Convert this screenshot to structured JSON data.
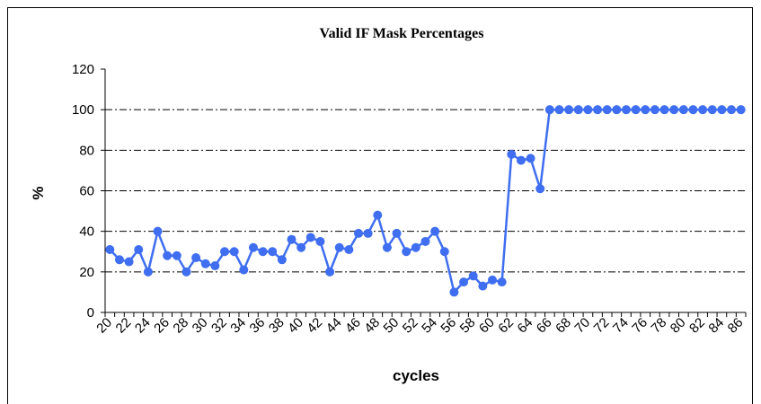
{
  "chart_data": {
    "type": "line",
    "title": "Valid IF Mask Percentages",
    "x_label": "cycles",
    "y_label": "%",
    "categories": [
      "20",
      null,
      "22",
      null,
      "24",
      null,
      "26",
      null,
      "28",
      null,
      "30",
      null,
      "32",
      null,
      "34",
      null,
      "36",
      null,
      "38",
      null,
      "40",
      null,
      "42",
      null,
      "44",
      null,
      "46",
      null,
      "48",
      null,
      "50",
      null,
      "52",
      null,
      "54",
      null,
      "56",
      null,
      "58",
      null,
      "60",
      null,
      "62",
      null,
      "64",
      null,
      "66",
      null,
      "68",
      null,
      "70",
      null,
      "72",
      null,
      "74",
      null,
      "76",
      null,
      "78",
      null,
      "80",
      null,
      "82",
      null,
      "84",
      null,
      "86"
    ],
    "series": [
      {
        "name": "Valid IF Mask",
        "color": "#3f6ef0",
        "values": [
          31,
          26,
          25,
          31,
          20,
          40,
          28,
          28,
          20,
          27,
          24,
          23,
          30,
          30,
          21,
          32,
          30,
          30,
          26,
          36,
          32,
          37,
          35,
          20,
          32,
          31,
          39,
          39,
          48,
          32,
          39,
          30,
          32,
          35,
          40,
          30,
          10,
          15,
          18,
          13,
          16,
          15,
          78,
          75,
          76,
          61,
          100,
          100,
          100,
          100,
          100,
          100,
          100,
          100,
          100,
          100,
          100,
          100,
          100,
          100,
          100,
          100,
          100,
          100,
          100,
          100,
          100
        ]
      }
    ],
    "ylim": [
      0,
      120
    ],
    "yticks": [
      0,
      20,
      40,
      60,
      80,
      100,
      120
    ],
    "grid": true
  }
}
